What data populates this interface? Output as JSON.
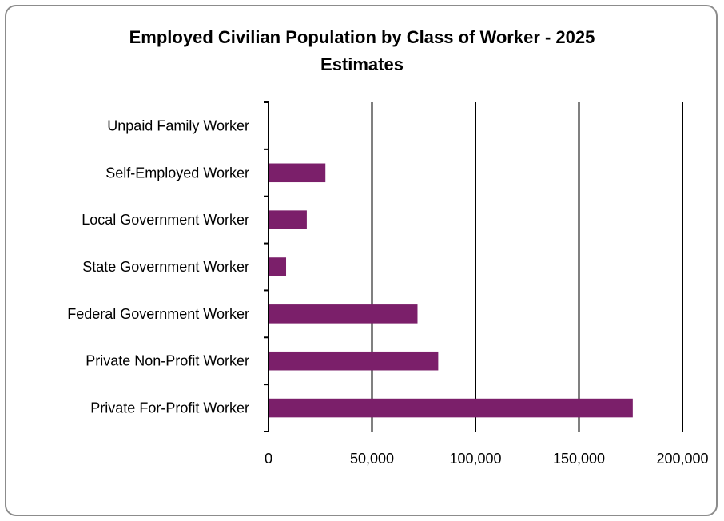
{
  "chart_data": {
    "type": "bar",
    "orientation": "horizontal",
    "title_line1": "Employed Civilian Population by Class of Worker - 2025",
    "title_line2": "Estimates",
    "categories": [
      "Unpaid Family Worker",
      "Self-Employed Worker",
      "Local Government Worker",
      "State Government Worker",
      "Federal Government Worker",
      "Private Non-Profit Worker",
      "Private For-Profit Worker"
    ],
    "values": [
      200,
      27500,
      18500,
      8500,
      72000,
      82000,
      176000
    ],
    "xlim": [
      0,
      200000
    ],
    "xticks": [
      "0",
      "50,000",
      "100,000",
      "150,000",
      "200,000"
    ],
    "xtick_values": [
      0,
      50000,
      100000,
      150000,
      200000
    ],
    "bar_color": "#7b1f6a",
    "grid": true
  }
}
